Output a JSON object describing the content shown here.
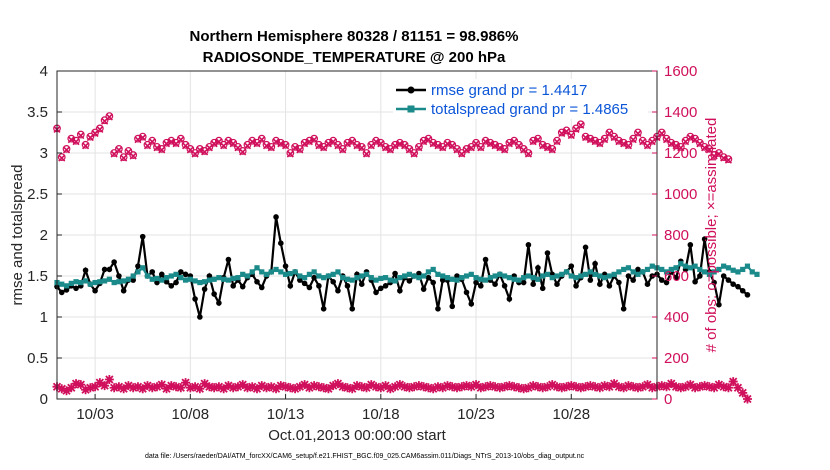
{
  "chart_data": {
    "type": "line",
    "title": "Northern Hemisphere 80328 / 81151 = 98.986%",
    "subtitle": "RADIOSONDE_TEMPERATURE @ 200 hPa",
    "xlabel": "Oct.01,2013 00:00:00 start",
    "ylabel": "rmse and totalspread",
    "ylabel_right": "# of obs: o=possible; ×=assimilated",
    "footnote": "data file: /Users/raeder/DAI/ATM_forcXX/CAM6_setup/f.e21.FHIST_BGC.f09_025.CAM6assim.011/Diags_NTrS_2013-10/obs_diag_output.nc",
    "xlim": [
      1.0,
      32.5
    ],
    "ylim": [
      0,
      4
    ],
    "ylim_right": [
      0,
      1600
    ],
    "xticks": [
      3,
      8,
      13,
      18,
      23,
      28
    ],
    "xtick_labels": [
      "10/03",
      "10/08",
      "10/13",
      "10/18",
      "10/23",
      "10/28"
    ],
    "yticks": [
      "0",
      "0.5",
      "1",
      "1.5",
      "2",
      "2.5",
      "3",
      "3.5",
      "4"
    ],
    "yticks_right": [
      "0",
      "200",
      "400",
      "600",
      "800",
      "1000",
      "1200",
      "1400",
      "1600"
    ],
    "grid": true,
    "legend_position": "top-right",
    "colors": {
      "rmse": "#000000",
      "spread": "#1a8a8a",
      "obs": "#d0105c"
    },
    "x_step": 0.25,
    "series": [
      {
        "name": "rmse grand pr = 1.4417",
        "axis": "left",
        "values": [
          1.37,
          1.3,
          1.33,
          1.38,
          1.35,
          1.38,
          1.57,
          1.4,
          1.32,
          1.41,
          1.58,
          1.58,
          1.67,
          1.5,
          1.32,
          1.45,
          1.45,
          1.62,
          1.98,
          1.5,
          1.55,
          1.42,
          1.52,
          1.43,
          1.38,
          1.42,
          1.55,
          1.52,
          1.5,
          1.22,
          1.0,
          1.34,
          1.5,
          1.28,
          1.17,
          1.48,
          1.7,
          1.38,
          1.45,
          1.37,
          1.48,
          1.52,
          1.43,
          1.36,
          1.5,
          1.55,
          2.22,
          1.9,
          1.62,
          1.38,
          1.55,
          1.45,
          1.41,
          1.36,
          1.48,
          1.38,
          1.1,
          1.5,
          1.43,
          1.32,
          1.5,
          1.38,
          1.1,
          1.52,
          1.4,
          1.55,
          1.45,
          1.3,
          1.35,
          1.38,
          1.42,
          1.53,
          1.32,
          1.48,
          1.44,
          1.5,
          1.53,
          1.34,
          1.48,
          1.42,
          1.1,
          1.45,
          1.45,
          1.13,
          1.5,
          1.46,
          1.3,
          1.16,
          1.42,
          1.38,
          1.7,
          1.45,
          1.4,
          1.52,
          1.38,
          1.22,
          1.5,
          1.42,
          1.42,
          1.88,
          1.4,
          1.6,
          1.35,
          1.78,
          1.52,
          1.4,
          1.5,
          1.55,
          1.62,
          1.38,
          1.48,
          1.85,
          1.45,
          1.65,
          1.4,
          1.52,
          1.38,
          1.5,
          1.42,
          1.1,
          1.5,
          1.45,
          1.58,
          1.55,
          1.4,
          1.5,
          1.52,
          1.45,
          1.42,
          1.55,
          1.48,
          1.68,
          1.58,
          1.88,
          1.43,
          1.5,
          1.95,
          1.55,
          1.42,
          1.15,
          1.5,
          1.45,
          1.4,
          1.37,
          1.32,
          1.27
        ]
      },
      {
        "name": "totalspread grand pr = 1.4865",
        "axis": "left",
        "values": [
          1.42,
          1.4,
          1.38,
          1.41,
          1.43,
          1.42,
          1.44,
          1.4,
          1.42,
          1.43,
          1.44,
          1.46,
          1.42,
          1.43,
          1.44,
          1.46,
          1.5,
          1.55,
          1.6,
          1.5,
          1.46,
          1.47,
          1.45,
          1.48,
          1.5,
          1.52,
          1.48,
          1.45,
          1.46,
          1.44,
          1.42,
          1.43,
          1.45,
          1.46,
          1.48,
          1.46,
          1.45,
          1.47,
          1.48,
          1.52,
          1.5,
          1.55,
          1.6,
          1.55,
          1.52,
          1.55,
          1.58,
          1.55,
          1.52,
          1.53,
          1.55,
          1.5,
          1.48,
          1.52,
          1.55,
          1.5,
          1.48,
          1.5,
          1.52,
          1.55,
          1.48,
          1.46,
          1.45,
          1.48,
          1.5,
          1.52,
          1.48,
          1.45,
          1.47,
          1.48,
          1.45,
          1.44,
          1.48,
          1.5,
          1.52,
          1.5,
          1.48,
          1.5,
          1.55,
          1.58,
          1.52,
          1.5,
          1.48,
          1.46,
          1.45,
          1.48,
          1.5,
          1.52,
          1.48,
          1.46,
          1.45,
          1.48,
          1.5,
          1.52,
          1.5,
          1.48,
          1.46,
          1.45,
          1.48,
          1.5,
          1.48,
          1.46,
          1.5,
          1.52,
          1.48,
          1.5,
          1.52,
          1.55,
          1.5,
          1.48,
          1.5,
          1.52,
          1.55,
          1.52,
          1.5,
          1.48,
          1.5,
          1.52,
          1.55,
          1.58,
          1.6,
          1.55,
          1.52,
          1.55,
          1.58,
          1.62,
          1.6,
          1.58,
          1.55,
          1.58,
          1.6,
          1.65,
          1.62,
          1.6,
          1.62,
          1.58,
          1.55,
          1.52,
          1.55,
          1.58,
          1.62,
          1.6,
          1.57,
          1.55,
          1.58,
          1.62,
          1.55,
          1.52
        ]
      },
      {
        "name": "possible",
        "axis": "right",
        "marker": "o",
        "values": [
          1320,
          1180,
          1220,
          1270,
          1260,
          1290,
          1240,
          1280,
          1300,
          1320,
          1360,
          1380,
          1200,
          1220,
          1180,
          1210,
          1190,
          1270,
          1280,
          1240,
          1260,
          1230,
          1220,
          1250,
          1260,
          1250,
          1270,
          1240,
          1220,
          1200,
          1220,
          1210,
          1230,
          1250,
          1260,
          1240,
          1260,
          1250,
          1230,
          1210,
          1240,
          1260,
          1250,
          1270,
          1240,
          1230,
          1260,
          1250,
          1240,
          1200,
          1230,
          1220,
          1250,
          1260,
          1270,
          1240,
          1230,
          1250,
          1260,
          1240,
          1220,
          1250,
          1260,
          1240,
          1230,
          1200,
          1240,
          1260,
          1250,
          1230,
          1220,
          1240,
          1250,
          1240,
          1220,
          1200,
          1230,
          1260,
          1270,
          1250,
          1240,
          1230,
          1250,
          1240,
          1220,
          1200,
          1220,
          1230,
          1250,
          1230,
          1260,
          1250,
          1240,
          1230,
          1220,
          1250,
          1260,
          1240,
          1220,
          1200,
          1260,
          1270,
          1240,
          1230,
          1220,
          1260,
          1300,
          1310,
          1290,
          1320,
          1340,
          1280,
          1270,
          1260,
          1250,
          1270,
          1300,
          1280,
          1260,
          1250,
          1240,
          1270,
          1300,
          1260,
          1240,
          1260,
          1280,
          1300,
          1270,
          1250,
          1240,
          1230,
          1260,
          1280,
          1270,
          1250,
          1230,
          1220,
          1190,
          1200,
          1180,
          1170
        ]
      },
      {
        "name": "assimilated",
        "axis": "right",
        "marker": "x",
        "values": [
          60,
          50,
          40,
          55,
          75,
          70,
          45,
          55,
          60,
          80,
          65,
          95,
          55,
          60,
          50,
          65,
          55,
          60,
          50,
          65,
          55,
          60,
          70,
          50,
          65,
          60,
          55,
          80,
          55,
          60,
          50,
          75,
          60,
          55,
          60,
          50,
          65,
          55,
          60,
          70,
          55,
          60,
          50,
          65,
          55,
          60,
          50,
          65,
          60,
          55,
          50,
          60,
          70,
          55,
          65,
          60,
          55,
          50,
          65,
          75,
          60,
          55,
          50,
          65,
          60,
          55,
          70,
          60,
          55,
          65,
          50,
          60,
          70,
          60,
          55,
          60,
          65,
          60,
          55,
          50,
          60,
          55,
          65,
          60,
          55,
          60,
          65,
          60,
          70,
          55,
          60,
          65,
          60,
          55,
          60,
          65,
          60,
          55,
          50,
          55,
          65,
          60,
          55,
          60,
          70,
          60,
          55,
          60,
          65,
          60,
          55,
          60,
          65,
          60,
          55,
          65,
          60,
          75,
          60,
          55,
          65,
          60,
          55,
          60,
          70,
          55,
          60,
          65,
          60,
          75,
          60,
          55,
          60,
          70,
          55,
          60,
          65,
          60,
          55,
          70,
          60,
          55,
          85,
          55,
          30,
          0
        ]
      }
    ]
  }
}
